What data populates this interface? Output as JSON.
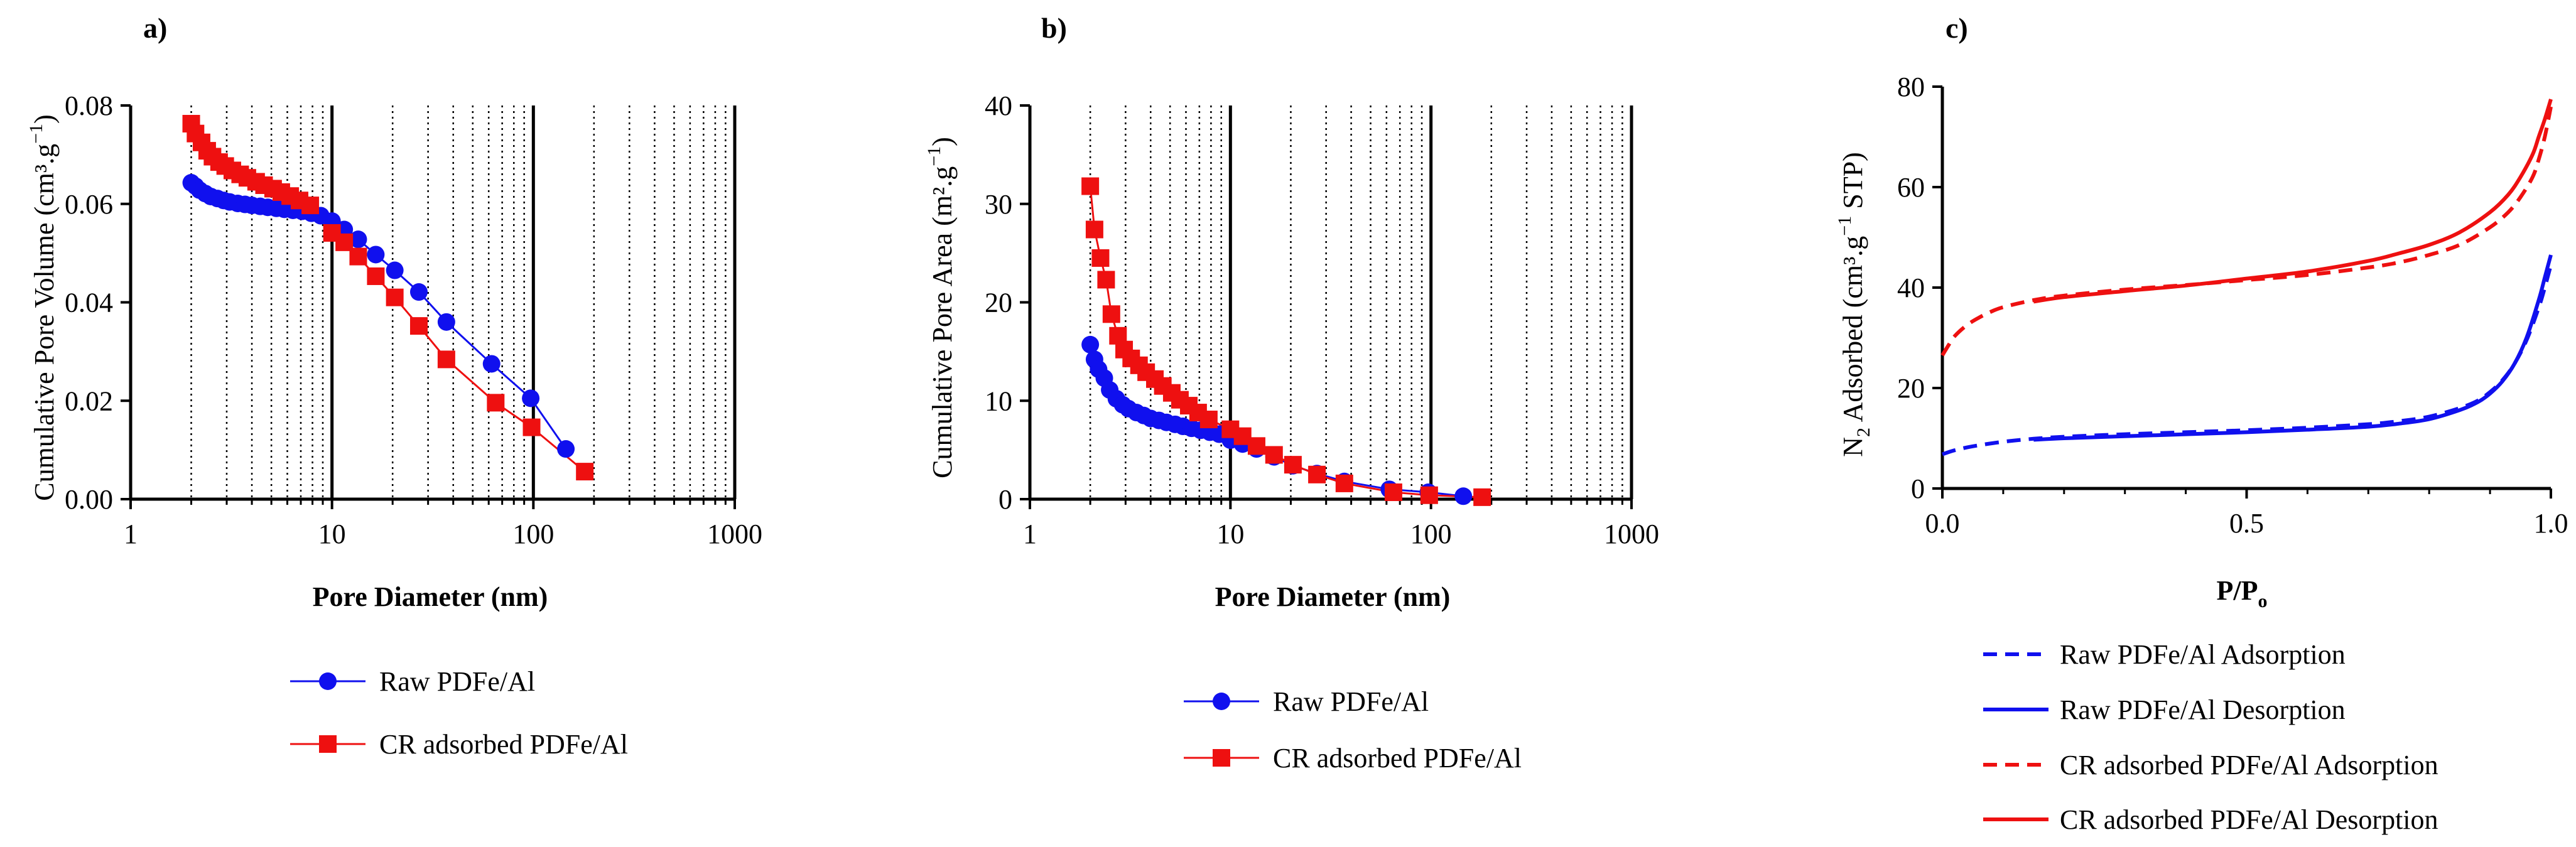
{
  "chart_data": [
    {
      "id": "a",
      "panel_label": "a)",
      "type": "scatter",
      "xscale": "log",
      "xlabel": "Pore Diameter (nm)",
      "ylabel_main": "Cumulative Pore Volume (cm³.g",
      "ylabel_sup": "−1",
      "ylabel_end": ")",
      "xlim": [
        1,
        1000
      ],
      "ylim": [
        0,
        0.08
      ],
      "xticks": [
        1,
        10,
        100,
        1000
      ],
      "xtick_labels": [
        "1",
        "10",
        "100",
        "1000"
      ],
      "yticks": [
        0,
        0.02,
        0.04,
        0.06,
        0.08
      ],
      "ytick_labels": [
        "0.00",
        "0.02",
        "0.04",
        "0.06",
        "0.08"
      ],
      "grid": "vertical dotted minor, solid major decades",
      "legend_position": "below",
      "series": [
        {
          "name": "Raw PDFe/Al",
          "color": "#1010ee",
          "marker": "circle",
          "x": [
            2.0,
            2.1,
            2.2,
            2.35,
            2.5,
            2.7,
            2.9,
            3.1,
            3.4,
            3.7,
            4.0,
            4.4,
            4.8,
            5.3,
            5.8,
            6.4,
            7.1,
            7.9,
            8.8,
            10.0,
            11.5,
            13.5,
            16.5,
            20.5,
            27,
            37,
            62,
            97,
            145
          ],
          "y": [
            0.0643,
            0.0636,
            0.0628,
            0.0621,
            0.0615,
            0.0611,
            0.0607,
            0.0604,
            0.0601,
            0.0599,
            0.0597,
            0.0595,
            0.0593,
            0.0591,
            0.0589,
            0.0587,
            0.0585,
            0.0581,
            0.0576,
            0.0565,
            0.0548,
            0.0528,
            0.0497,
            0.0465,
            0.0421,
            0.036,
            0.0275,
            0.0205,
            0.0102
          ]
        },
        {
          "name": "CR adsorbed PDFe/Al",
          "color": "#ee1010",
          "marker": "square",
          "x": [
            2.0,
            2.1,
            2.25,
            2.4,
            2.55,
            2.75,
            2.95,
            3.2,
            3.5,
            3.8,
            4.2,
            4.6,
            5.1,
            5.6,
            6.2,
            6.9,
            7.8,
            10.0,
            11.5,
            13.5,
            16.5,
            20.5,
            27,
            37,
            65,
            98,
            180
          ],
          "y": [
            0.0763,
            0.0743,
            0.0725,
            0.0708,
            0.0696,
            0.0685,
            0.0677,
            0.0668,
            0.066,
            0.0653,
            0.0645,
            0.0638,
            0.0631,
            0.0624,
            0.0616,
            0.0607,
            0.0597,
            0.0541,
            0.0522,
            0.0493,
            0.0453,
            0.041,
            0.0352,
            0.0284,
            0.0196,
            0.0146,
            0.0056
          ]
        }
      ]
    },
    {
      "id": "b",
      "panel_label": "b)",
      "type": "scatter",
      "xscale": "log",
      "xlabel": "Pore Diameter (nm)",
      "ylabel_main": "Cumulative Pore Area (m².g",
      "ylabel_sup": "−1",
      "ylabel_end": ")",
      "xlim": [
        1,
        1000
      ],
      "ylim": [
        0,
        40
      ],
      "xticks": [
        1,
        10,
        100,
        1000
      ],
      "xtick_labels": [
        "1",
        "10",
        "100",
        "1000"
      ],
      "yticks": [
        0,
        10,
        20,
        30,
        40
      ],
      "ytick_labels": [
        "0",
        "10",
        "20",
        "30",
        "40"
      ],
      "grid": "vertical dotted minor, solid major decades",
      "legend_position": "below",
      "series": [
        {
          "name": "Raw PDFe/Al",
          "color": "#1010ee",
          "marker": "circle",
          "x": [
            2.0,
            2.1,
            2.2,
            2.35,
            2.5,
            2.7,
            2.9,
            3.1,
            3.4,
            3.7,
            4.0,
            4.4,
            4.8,
            5.3,
            5.8,
            6.4,
            7.1,
            7.9,
            8.8,
            10.0,
            11.5,
            13.5,
            16.5,
            20.5,
            27,
            37,
            62,
            97,
            145
          ],
          "y": [
            15.7,
            14.2,
            13.2,
            12.3,
            11.1,
            10.2,
            9.6,
            9.2,
            8.8,
            8.5,
            8.2,
            8.0,
            7.8,
            7.6,
            7.4,
            7.2,
            7.0,
            6.8,
            6.6,
            6.0,
            5.6,
            5.1,
            4.3,
            3.4,
            2.6,
            1.8,
            1.0,
            0.7,
            0.3
          ]
        },
        {
          "name": "CR adsorbed PDFe/Al",
          "color": "#ee1010",
          "marker": "square",
          "x": [
            2.0,
            2.1,
            2.25,
            2.4,
            2.55,
            2.75,
            2.95,
            3.2,
            3.5,
            3.8,
            4.2,
            4.6,
            5.1,
            5.6,
            6.2,
            6.9,
            7.8,
            10.0,
            11.5,
            13.5,
            16.5,
            20.5,
            27,
            37,
            65,
            98,
            180
          ],
          "y": [
            31.8,
            27.4,
            24.5,
            22.3,
            18.8,
            16.6,
            15.2,
            14.3,
            13.6,
            12.9,
            12.2,
            11.5,
            10.8,
            10.1,
            9.5,
            8.8,
            8.1,
            7.1,
            6.4,
            5.4,
            4.5,
            3.5,
            2.5,
            1.6,
            0.7,
            0.4,
            0.2
          ]
        }
      ]
    },
    {
      "id": "c",
      "panel_label": "c)",
      "type": "line",
      "xlabel_main": "P/P",
      "xlabel_sub": "o",
      "ylabel_main": "N",
      "ylabel_sub": "2",
      "ylabel_mid": " Adsorbed (cm³.g",
      "ylabel_sup": "−1",
      "ylabel_end": " STP)",
      "xlim": [
        0,
        1.0
      ],
      "ylim": [
        0,
        80
      ],
      "xticks": [
        0,
        0.5,
        1.0
      ],
      "xtick_labels": [
        "0.0",
        "0.5",
        "1.0"
      ],
      "yticks": [
        0,
        20,
        40,
        60,
        80
      ],
      "ytick_labels": [
        "0",
        "20",
        "40",
        "60",
        "80"
      ],
      "grid": "off",
      "legend_position": "below",
      "series": [
        {
          "name": "Raw PDFe/Al Adsorption",
          "color": "#1010ee",
          "dash": true,
          "x": [
            0.0,
            0.02,
            0.05,
            0.1,
            0.15,
            0.2,
            0.3,
            0.4,
            0.5,
            0.6,
            0.7,
            0.75,
            0.8,
            0.85,
            0.88,
            0.9,
            0.92,
            0.94,
            0.96,
            0.98,
            0.99,
            1.0
          ],
          "y": [
            6.8,
            7.6,
            8.4,
            9.3,
            9.9,
            10.3,
            10.8,
            11.2,
            11.6,
            12.1,
            12.8,
            13.4,
            14.3,
            16.0,
            17.5,
            19.2,
            21.5,
            24.8,
            29.5,
            36.0,
            40.0,
            44.5
          ]
        },
        {
          "name": "Raw PDFe/Al Desorption",
          "color": "#1010ee",
          "dash": false,
          "x": [
            0.15,
            0.2,
            0.3,
            0.4,
            0.5,
            0.6,
            0.7,
            0.75,
            0.8,
            0.85,
            0.88,
            0.9,
            0.92,
            0.94,
            0.96,
            0.98,
            0.99,
            1.0
          ],
          "y": [
            9.7,
            10.0,
            10.4,
            10.8,
            11.2,
            11.7,
            12.3,
            12.9,
            13.8,
            15.6,
            17.2,
            18.9,
            21.3,
            24.8,
            30.0,
            37.5,
            42.0,
            46.5
          ]
        },
        {
          "name": "CR adsorbed PDFe/Al Adsorption",
          "color": "#ee1010",
          "dash": true,
          "x": [
            0.0,
            0.01,
            0.02,
            0.04,
            0.06,
            0.08,
            0.1,
            0.15,
            0.2,
            0.3,
            0.4,
            0.5,
            0.6,
            0.7,
            0.75,
            0.8,
            0.85,
            0.9,
            0.93,
            0.95,
            0.97,
            0.98,
            0.99,
            1.0
          ],
          "y": [
            26.5,
            28.5,
            30.3,
            32.5,
            34.0,
            35.2,
            36.1,
            37.5,
            38.4,
            39.6,
            40.5,
            41.5,
            42.5,
            44.0,
            45.0,
            46.5,
            48.5,
            52.0,
            55.0,
            58.0,
            62.0,
            65.5,
            70.0,
            76.0
          ]
        },
        {
          "name": "CR adsorbed PDFe/Al Desorption",
          "color": "#ee1010",
          "dash": false,
          "x": [
            0.15,
            0.2,
            0.3,
            0.4,
            0.5,
            0.6,
            0.7,
            0.75,
            0.8,
            0.85,
            0.9,
            0.93,
            0.95,
            0.97,
            0.98,
            0.99,
            1.0
          ],
          "y": [
            37.2,
            38.1,
            39.3,
            40.4,
            41.8,
            43.2,
            45.3,
            46.8,
            48.5,
            51.0,
            55.0,
            58.5,
            62.0,
            66.5,
            70.0,
            73.5,
            77.5
          ]
        }
      ]
    }
  ]
}
